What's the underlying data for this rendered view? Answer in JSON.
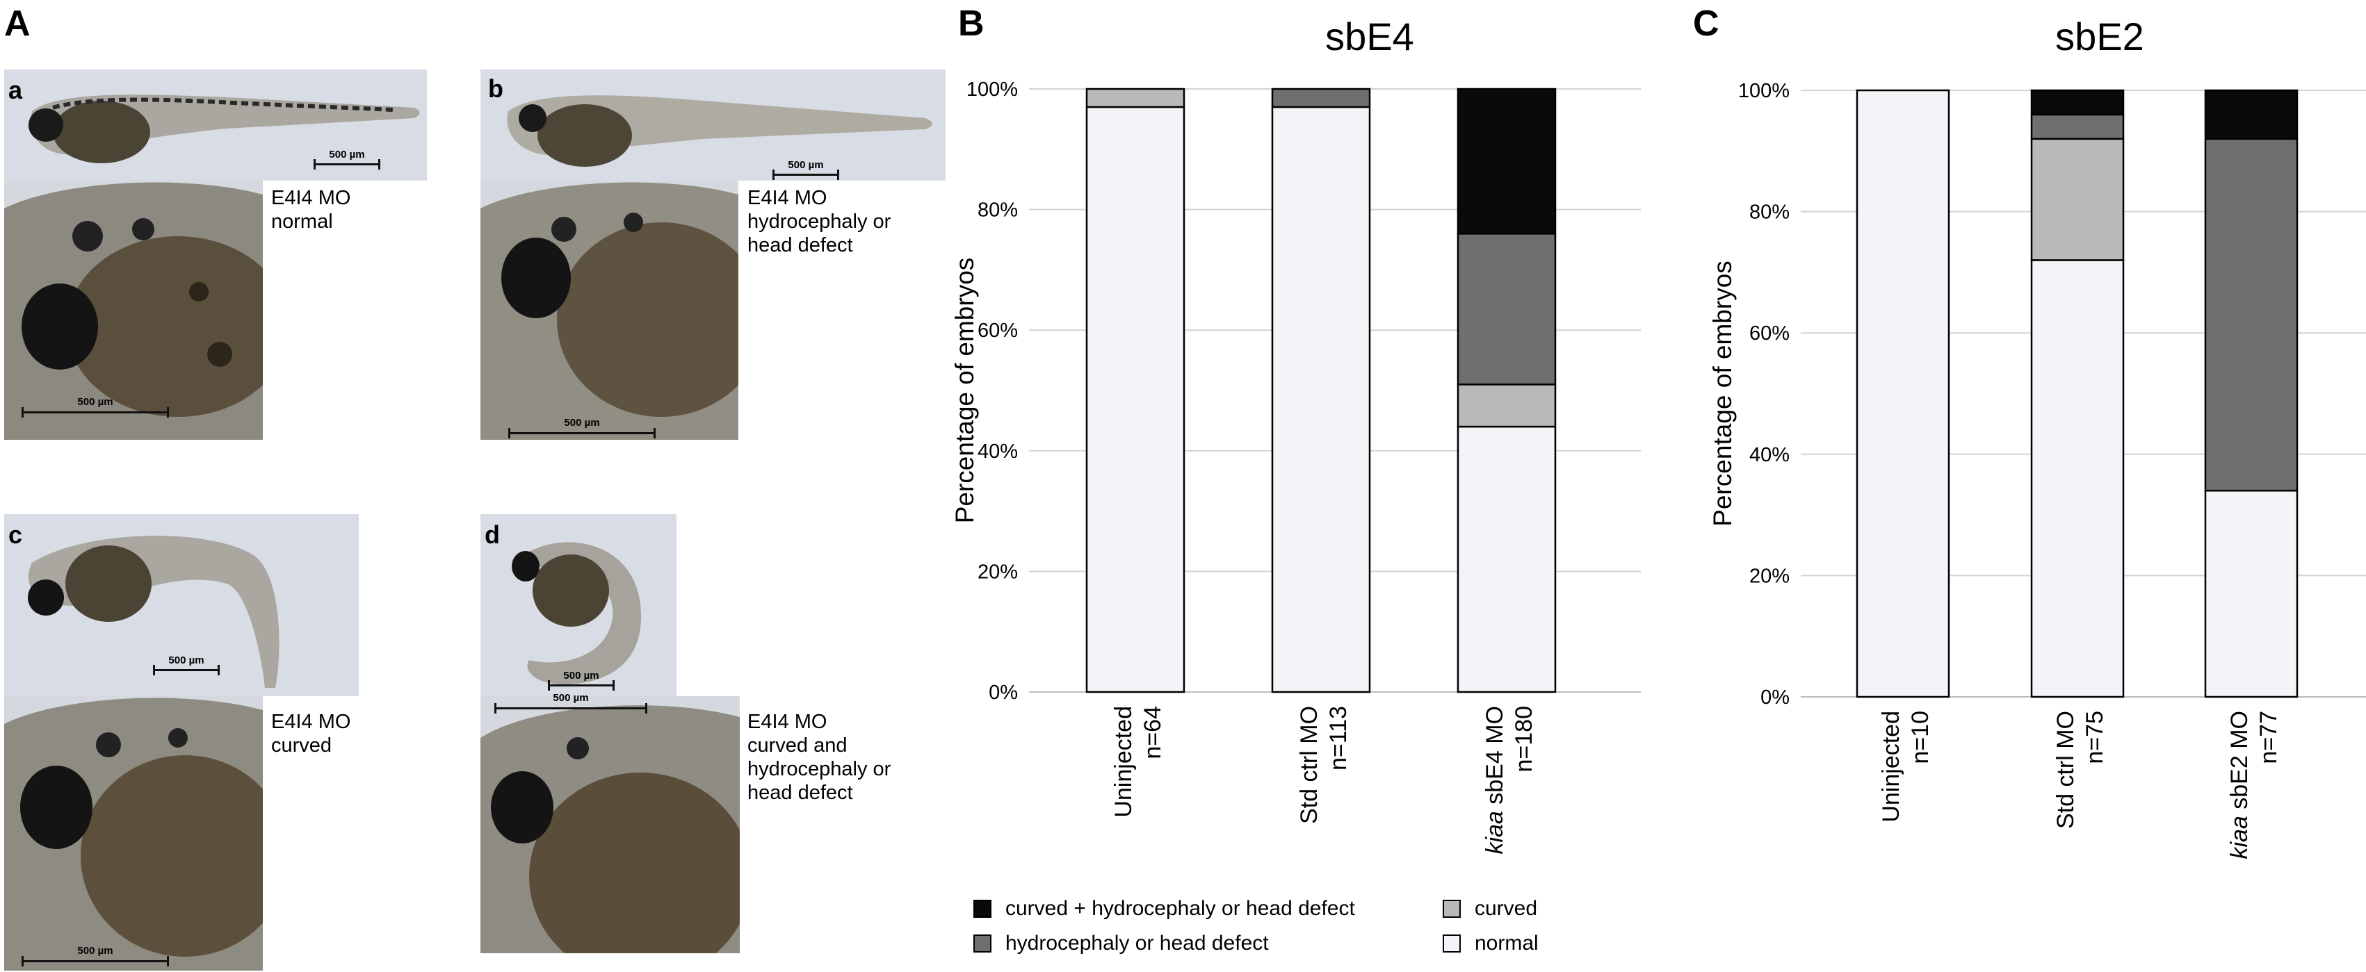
{
  "panel_a": {
    "letter": "A",
    "subpanels": [
      {
        "letter": "a",
        "caption": [
          "E4I4 MO",
          "normal"
        ],
        "scale_top": "500 µm",
        "scale_bottom": "500 µm"
      },
      {
        "letter": "b",
        "caption": [
          "E4I4 MO",
          "hydrocephaly or",
          "head defect"
        ],
        "scale_top": "500 µm",
        "scale_bottom": "500 µm"
      },
      {
        "letter": "c",
        "caption": [
          "E4I4 MO",
          "curved"
        ],
        "scale_top": "500 µm",
        "scale_bottom": "500 µm"
      },
      {
        "letter": "d",
        "caption": [
          "E4I4 MO",
          "curved and",
          "hydrocephaly or",
          "head defect"
        ],
        "scale_top": "500 µm",
        "scale_bottom": "500 µm"
      }
    ]
  },
  "colors": {
    "curved_hydro": "#0a0a0a",
    "hydro": "#6f6f6f",
    "curved": "#b9b9b9",
    "normal": "#f4f4f8",
    "gridline": "#d3d3d3",
    "micro_bg": "#d7dbe2"
  },
  "legend": [
    {
      "key": "curved_hydro",
      "label": "curved + hydrocephaly or head defect"
    },
    {
      "key": "curved",
      "label": "curved"
    },
    {
      "key": "hydro",
      "label": "hydrocephaly or head defect"
    },
    {
      "key": "normal",
      "label": "normal"
    }
  ],
  "chart_data": [
    {
      "panel": "B",
      "type": "bar",
      "stacked": true,
      "title": "sbE4",
      "ylabel": "Percentage of embryos",
      "ylim": [
        0,
        100
      ],
      "yticks": [
        "0%",
        "20%",
        "40%",
        "60%",
        "80%",
        "100%"
      ],
      "grid": true,
      "categories": [
        {
          "name_prefix": "",
          "name": "Uninjected",
          "n": "n=64"
        },
        {
          "name_prefix": "",
          "name": "Std ctrl MO",
          "n": "n=113"
        },
        {
          "name_prefix": "kiaa",
          "name": " sbE4 MO",
          "n": "n=180"
        }
      ],
      "series": [
        {
          "name": "normal",
          "values": [
            97,
            97,
            44
          ]
        },
        {
          "name": "curved",
          "values": [
            3,
            0,
            7
          ]
        },
        {
          "name": "hydrocephaly or head defect",
          "values": [
            0,
            3,
            25
          ]
        },
        {
          "name": "curved + hydrocephaly or head defect",
          "values": [
            0,
            0,
            24
          ]
        }
      ]
    },
    {
      "panel": "C",
      "type": "bar",
      "stacked": true,
      "title": "sbE2",
      "ylabel": "Percentage of embryos",
      "ylim": [
        0,
        100
      ],
      "yticks": [
        "0%",
        "20%",
        "40%",
        "60%",
        "80%",
        "100%"
      ],
      "grid": true,
      "categories": [
        {
          "name_prefix": "",
          "name": "Uninjected",
          "n": "n=10"
        },
        {
          "name_prefix": "",
          "name": "Std ctrl MO",
          "n": "n=75"
        },
        {
          "name_prefix": "kiaa",
          "name": " sbE2 MO",
          "n": "n=77"
        }
      ],
      "series": [
        {
          "name": "normal",
          "values": [
            100,
            72,
            34
          ]
        },
        {
          "name": "curved",
          "values": [
            0,
            20,
            0
          ]
        },
        {
          "name": "hydrocephaly or head defect",
          "values": [
            0,
            4,
            58
          ]
        },
        {
          "name": "curved + hydrocephaly or head defect",
          "values": [
            0,
            4,
            8
          ]
        }
      ]
    }
  ]
}
